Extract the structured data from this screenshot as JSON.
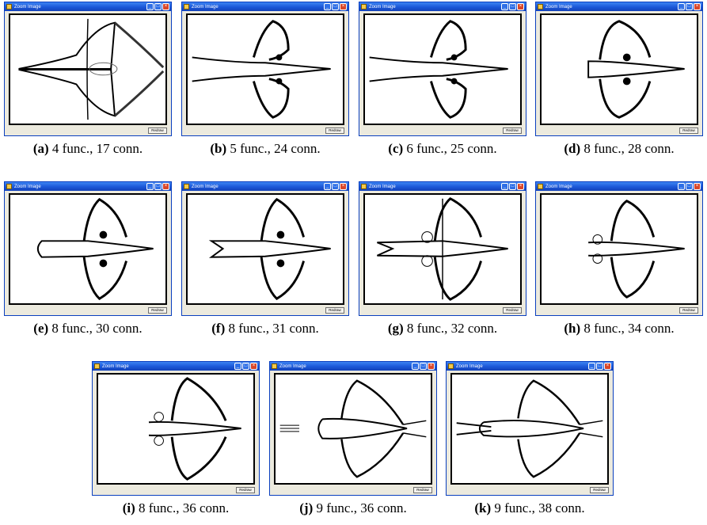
{
  "window": {
    "title": "Zoom Image",
    "button_label": "Redraw"
  },
  "panels": [
    {
      "id": "a",
      "caption_id": "(a)",
      "caption_text": " 4 func., 17 conn."
    },
    {
      "id": "b",
      "caption_id": "(b)",
      "caption_text": " 5 func., 24 conn."
    },
    {
      "id": "c",
      "caption_id": "(c)",
      "caption_text": " 6 func., 25 conn."
    },
    {
      "id": "d",
      "caption_id": "(d)",
      "caption_text": " 8 func., 28 conn."
    },
    {
      "id": "e",
      "caption_id": "(e)",
      "caption_text": " 8 func., 30 conn."
    },
    {
      "id": "f",
      "caption_id": "(f)",
      "caption_text": " 8 func., 31 conn."
    },
    {
      "id": "g",
      "caption_id": "(g)",
      "caption_text": " 8 func., 32 conn."
    },
    {
      "id": "h",
      "caption_id": "(h)",
      "caption_text": " 8 func., 34 conn."
    },
    {
      "id": "i",
      "caption_id": "(i)",
      "caption_text": " 8 func., 36 conn."
    },
    {
      "id": "j",
      "caption_id": "(j)",
      "caption_text": " 9 func., 36 conn."
    },
    {
      "id": "k",
      "caption_id": "(k)",
      "caption_text": " 9 func., 38 conn."
    }
  ]
}
